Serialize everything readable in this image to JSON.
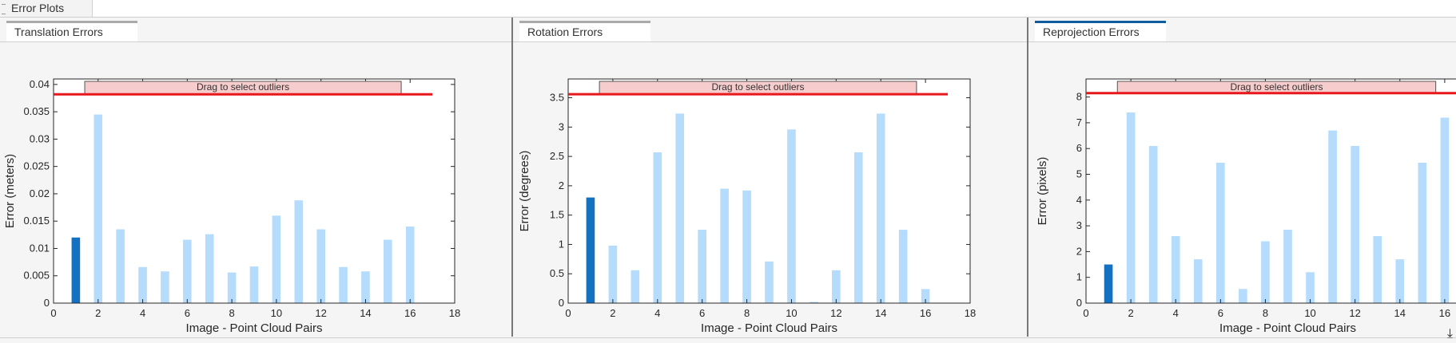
{
  "window": {
    "tab_label": "Error Plots"
  },
  "colors": {
    "selected_bar": "#1470c0",
    "bar": "#b5dcfc",
    "threshold": "#e8171c",
    "drag_box": "#f7cccc"
  },
  "corner_icon": "download-arrow-icon",
  "chart_data": [
    {
      "panel_tab": "Translation Errors",
      "type": "bar",
      "xlabel": "Image - Point Cloud Pairs",
      "ylabel": "Error (meters)",
      "xlim": [
        0,
        18
      ],
      "ylim": [
        0,
        0.041
      ],
      "xticks": [
        "0",
        "2",
        "4",
        "6",
        "8",
        "10",
        "12",
        "14",
        "16",
        "18"
      ],
      "yticks": [
        "0",
        "0.005",
        "0.01",
        "0.015",
        "0.02",
        "0.025",
        "0.03",
        "0.035",
        "0.04"
      ],
      "x": [
        1,
        2,
        3,
        4,
        5,
        6,
        7,
        8,
        9,
        10,
        11,
        12,
        13,
        14,
        15,
        16
      ],
      "values": [
        0.012,
        0.0345,
        0.0135,
        0.0066,
        0.0058,
        0.0116,
        0.0126,
        0.0056,
        0.0067,
        0.016,
        0.0188,
        0.0135,
        0.0066,
        0.0058,
        0.0116,
        0.014
      ],
      "selected": [
        1
      ],
      "threshold": 0.0382,
      "drag_label": "Drag to select outliers",
      "grid": false
    },
    {
      "panel_tab": "Rotation Errors",
      "type": "bar",
      "xlabel": "Image - Point Cloud Pairs",
      "ylabel": "Error (degrees)",
      "xlim": [
        0,
        18
      ],
      "ylim": [
        0,
        3.82
      ],
      "xticks": [
        "0",
        "2",
        "4",
        "6",
        "8",
        "10",
        "12",
        "14",
        "16",
        "18"
      ],
      "yticks": [
        "0",
        "0.5",
        "1",
        "1.5",
        "2",
        "2.5",
        "3",
        "3.5"
      ],
      "x": [
        1,
        2,
        3,
        4,
        5,
        6,
        7,
        8,
        9,
        10,
        11,
        12,
        13,
        14,
        15,
        16
      ],
      "values": [
        1.8,
        0.98,
        0.56,
        2.57,
        3.23,
        1.25,
        1.95,
        1.92,
        0.71,
        2.96,
        0.02,
        0.56,
        2.57,
        3.23,
        1.25,
        0.24
      ],
      "selected": [
        1
      ],
      "threshold": 3.56,
      "drag_label": "Drag to select outliers",
      "grid": false
    },
    {
      "panel_tab": "Reprojection Errors",
      "type": "bar",
      "xlabel": "Image - Point Cloud Pairs",
      "ylabel": "Error (pixels)",
      "xlim": [
        0,
        18
      ],
      "ylim": [
        0,
        8.7
      ],
      "xticks": [
        "0",
        "2",
        "4",
        "6",
        "8",
        "10",
        "12",
        "14",
        "16",
        "18"
      ],
      "yticks": [
        "0",
        "1",
        "2",
        "3",
        "4",
        "5",
        "6",
        "7",
        "8"
      ],
      "x": [
        1,
        2,
        3,
        4,
        5,
        6,
        7,
        8,
        9,
        10,
        11,
        12,
        13,
        14,
        15,
        16
      ],
      "values": [
        1.5,
        7.4,
        6.1,
        2.6,
        1.7,
        5.45,
        0.55,
        2.4,
        2.85,
        1.2,
        6.7,
        6.1,
        2.6,
        1.7,
        5.45,
        7.2
      ],
      "selected": [
        1
      ],
      "threshold": 8.15,
      "drag_label": "Drag to select outliers",
      "grid": false
    }
  ]
}
